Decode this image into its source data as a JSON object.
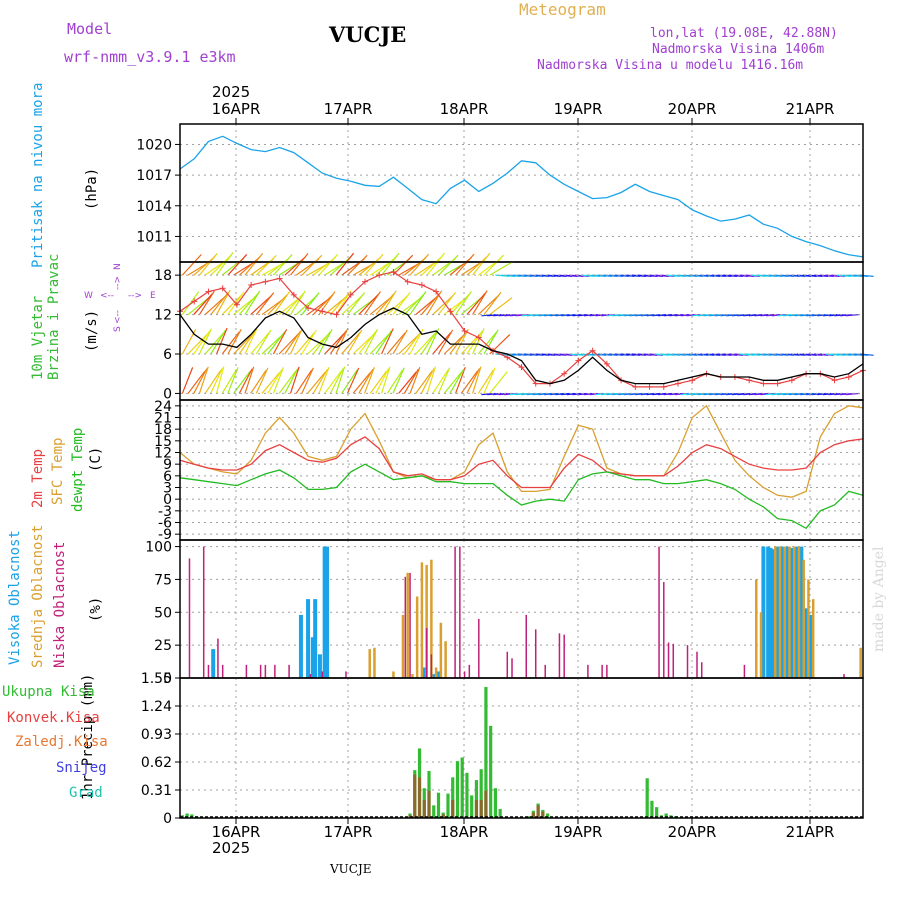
{
  "header": {
    "model_label": "Model",
    "model_name": "wrf-nmm_v3.9.1  e3km",
    "station": "VUCJE",
    "title": "Meteogram",
    "coords": "lon,lat (19.08E, 42.88N)",
    "elevation": "Nadmorska Visina 1406m",
    "model_elevation": "Nadmorska Visina u modelu 1416.16m",
    "year_top": "2025",
    "year_bottom": "2025",
    "station_bottom": "VUCJE",
    "watermark": "made by Angel"
  },
  "colors": {
    "pressure": "#1aa3e8",
    "wind_speed": "#000000",
    "gust": "#e84040",
    "temp2m": "#e84040",
    "sfc_temp": "#d9a030",
    "dewpt": "#22bb22",
    "high_cloud": "#1aa3e8",
    "mid_cloud": "#d9a030",
    "low_cloud": "#c0207a",
    "total_precip": "#33bb33",
    "conv_precip": "#e84040",
    "frozen": "#e87830",
    "snow": "#4040e0",
    "graupel": "#20c0b0",
    "grid": "#a0a0a0",
    "title": "#e0b050",
    "purple": "#a040d0"
  },
  "chart_data": [
    {
      "type": "line",
      "panel": "pressure",
      "title": "Pritisak na nivou mora",
      "ylabel": "(hPa)",
      "ylim": [
        1008.5,
        1022
      ],
      "yticks": [
        1011,
        1014,
        1017,
        1020
      ],
      "x_dates": [
        "16APR",
        "17APR",
        "18APR",
        "19APR",
        "20APR",
        "21APR"
      ],
      "xlim_hours": [
        0,
        144
      ],
      "series": [
        {
          "name": "MSLP",
          "x": [
            0,
            3,
            6,
            9,
            12,
            15,
            18,
            21,
            24,
            27,
            30,
            33,
            36,
            39,
            42,
            45,
            48,
            51,
            54,
            57,
            60,
            63,
            66,
            69,
            72,
            75,
            78,
            81,
            84,
            87,
            90,
            93,
            96,
            99,
            102,
            105,
            108,
            111,
            114,
            117,
            120,
            123,
            126,
            129,
            132,
            135,
            138,
            141,
            144
          ],
          "values": [
            1017.6,
            1018.6,
            1020.3,
            1020.8,
            1020.1,
            1019.5,
            1019.3,
            1019.7,
            1019.2,
            1018.2,
            1017.2,
            1016.7,
            1016.4,
            1016.0,
            1015.9,
            1016.8,
            1015.7,
            1014.6,
            1014.2,
            1015.7,
            1016.5,
            1015.4,
            1016.2,
            1017.2,
            1018.4,
            1018.2,
            1017.0,
            1016.1,
            1015.4,
            1014.7,
            1014.8,
            1015.3,
            1016.1,
            1015.4,
            1015.0,
            1014.6,
            1013.6,
            1013.0,
            1012.5,
            1012.7,
            1013.1,
            1012.2,
            1011.8,
            1011.0,
            1010.5,
            1010.1,
            1009.6,
            1009.2,
            1009.0
          ]
        }
      ]
    },
    {
      "type": "line",
      "panel": "wind",
      "title": "10m Vjetar Brzina i Pravac",
      "ylabel": "(m/s)",
      "ylim": [
        -1,
        20
      ],
      "yticks": [
        0,
        6,
        12,
        18
      ],
      "direction_legend": [
        "N",
        "S",
        "W",
        "E"
      ],
      "direction_arrows": [
        "<--",
        "-->"
      ],
      "series": [
        {
          "name": "wind speed",
          "x": [
            0,
            3,
            6,
            9,
            12,
            15,
            18,
            21,
            24,
            27,
            30,
            33,
            36,
            39,
            42,
            45,
            48,
            51,
            54,
            57,
            60,
            63,
            66,
            69,
            72,
            75,
            78,
            81,
            84,
            87,
            90,
            93,
            96,
            99,
            102,
            105,
            108,
            111,
            114,
            117,
            120,
            123,
            126,
            129,
            132,
            135,
            138,
            141,
            144
          ],
          "values": [
            12.0,
            9.0,
            7.5,
            7.5,
            7.0,
            9.0,
            11.5,
            12.5,
            11.5,
            8.5,
            7.5,
            7.0,
            8.5,
            10.5,
            12.0,
            13.0,
            12.0,
            9.0,
            9.5,
            7.5,
            7.5,
            7.5,
            6.5,
            6.0,
            5.0,
            2.0,
            1.5,
            2.0,
            3.5,
            5.5,
            3.5,
            2.0,
            1.5,
            1.5,
            1.5,
            2.0,
            2.5,
            3.0,
            2.5,
            2.5,
            2.5,
            2.0,
            2.0,
            2.5,
            3.0,
            3.0,
            2.5,
            3.0,
            4.5
          ]
        },
        {
          "name": "wind gust",
          "x": [
            0,
            3,
            6,
            9,
            12,
            15,
            18,
            21,
            24,
            27,
            30,
            33,
            36,
            39,
            42,
            45,
            48,
            51,
            54,
            57,
            60,
            63,
            66,
            69,
            72,
            75,
            78,
            81,
            84,
            87,
            90,
            93,
            96,
            99,
            102,
            105,
            108,
            111,
            114,
            117,
            120,
            123,
            126,
            129,
            132,
            135,
            138,
            141,
            144
          ],
          "values": [
            12.5,
            14.0,
            15.5,
            16.0,
            13.5,
            16.5,
            17.0,
            17.5,
            15.0,
            13.0,
            12.5,
            12.0,
            15.0,
            17.0,
            18.0,
            18.5,
            17.0,
            16.5,
            15.5,
            12.5,
            9.5,
            8.5,
            6.5,
            5.5,
            4.0,
            1.5,
            1.5,
            3.0,
            5.0,
            6.5,
            4.5,
            2.0,
            1.0,
            1.0,
            1.0,
            1.5,
            2.0,
            3.0,
            2.5,
            2.5,
            2.0,
            1.5,
            1.5,
            2.0,
            3.0,
            3.0,
            2.0,
            2.5,
            3.5
          ]
        }
      ]
    },
    {
      "type": "line",
      "panel": "temperature",
      "title": "2m Temp / SFC Temp / dewpt Temp",
      "ylabel": "(C)",
      "ylim": [
        -10.5,
        25.5
      ],
      "yticks": [
        -9,
        -6,
        -3,
        0,
        3,
        6,
        9,
        12,
        15,
        18,
        21,
        24
      ],
      "series": [
        {
          "name": "2m Temp",
          "x": [
            0,
            3,
            6,
            9,
            12,
            15,
            18,
            21,
            24,
            27,
            30,
            33,
            36,
            39,
            42,
            45,
            48,
            51,
            54,
            57,
            60,
            63,
            66,
            69,
            72,
            75,
            78,
            81,
            84,
            87,
            90,
            93,
            96,
            99,
            102,
            105,
            108,
            111,
            114,
            117,
            120,
            123,
            126,
            129,
            132,
            135,
            138,
            141,
            144
          ],
          "values": [
            10.0,
            9.0,
            8.0,
            7.5,
            7.5,
            9.0,
            12.5,
            14.0,
            12.0,
            10.0,
            9.5,
            10.5,
            14.0,
            16.0,
            13.0,
            7.0,
            6.0,
            6.5,
            5.0,
            5.0,
            6.0,
            9.0,
            10.0,
            6.0,
            3.0,
            3.0,
            3.0,
            8.0,
            11.5,
            10.0,
            7.0,
            6.5,
            6.0,
            6.0,
            6.0,
            8.5,
            12.0,
            14.0,
            13.0,
            11.0,
            9.0,
            8.0,
            7.5,
            7.5,
            8.0,
            12.0,
            14.0,
            15.0,
            15.5
          ]
        },
        {
          "name": "SFC Temp",
          "x": [
            0,
            3,
            6,
            9,
            12,
            15,
            18,
            21,
            24,
            27,
            30,
            33,
            36,
            39,
            42,
            45,
            48,
            51,
            54,
            57,
            60,
            63,
            66,
            69,
            72,
            75,
            78,
            81,
            84,
            87,
            90,
            93,
            96,
            99,
            102,
            105,
            108,
            111,
            114,
            117,
            120,
            123,
            126,
            129,
            132,
            135,
            138,
            141,
            144
          ],
          "values": [
            12.0,
            9.0,
            8.0,
            7.0,
            6.5,
            10.0,
            17.0,
            21.0,
            17.0,
            11.0,
            10.0,
            11.0,
            18.0,
            22.0,
            15.0,
            7.0,
            5.5,
            6.0,
            5.0,
            5.0,
            7.0,
            14.0,
            17.0,
            7.0,
            2.0,
            2.0,
            2.5,
            11.0,
            19.0,
            18.0,
            8.0,
            6.5,
            6.0,
            6.0,
            6.0,
            12.0,
            21.0,
            24.0,
            17.0,
            10.0,
            6.0,
            3.0,
            1.0,
            0.5,
            2.0,
            16.0,
            22.0,
            24.0,
            23.5
          ]
        },
        {
          "name": "dewpt Temp",
          "x": [
            0,
            3,
            6,
            9,
            12,
            15,
            18,
            21,
            24,
            27,
            30,
            33,
            36,
            39,
            42,
            45,
            48,
            51,
            54,
            57,
            60,
            63,
            66,
            69,
            72,
            75,
            78,
            81,
            84,
            87,
            90,
            93,
            96,
            99,
            102,
            105,
            108,
            111,
            114,
            117,
            120,
            123,
            126,
            129,
            132,
            135,
            138,
            141,
            144
          ],
          "values": [
            5.5,
            5.0,
            4.5,
            4.0,
            3.5,
            5.0,
            6.5,
            7.5,
            5.5,
            2.5,
            2.5,
            3.0,
            7.0,
            9.0,
            7.0,
            5.0,
            5.5,
            6.0,
            4.5,
            4.5,
            4.0,
            4.0,
            4.0,
            1.0,
            -1.5,
            -0.5,
            0.0,
            -0.5,
            5.0,
            6.5,
            7.0,
            6.0,
            5.0,
            5.0,
            4.0,
            4.0,
            4.5,
            5.0,
            4.0,
            2.5,
            0.0,
            -2.0,
            -5.0,
            -5.5,
            -7.5,
            -3.0,
            -1.5,
            2.0,
            1.0
          ]
        }
      ]
    },
    {
      "type": "bar",
      "panel": "clouds",
      "title": "Visoka Oblacnost / Srednja Oblacnost / Niska Oblacnost",
      "ylabel": "(%)",
      "ylim": [
        0,
        105
      ],
      "yticks": [
        0,
        25,
        50,
        75,
        100
      ],
      "series": [
        {
          "name": "Visoka Oblacnost",
          "x": [
            7,
            25.5,
            27,
            28,
            28.5,
            29.5,
            30.5,
            31,
            51.5,
            53.5,
            54.5,
            123,
            124,
            124.5,
            125,
            126,
            127,
            128,
            129,
            130,
            131,
            132,
            133
          ],
          "values": [
            22,
            48,
            60,
            31,
            60,
            18,
            100,
            100,
            8,
            3,
            5,
            100,
            100,
            99,
            98,
            100,
            100,
            100,
            99,
            100,
            100,
            53,
            48
          ]
        },
        {
          "name": "Srednja Oblacnost",
          "x": [
            40,
            41,
            45,
            47,
            48,
            49,
            50,
            51,
            52,
            53,
            54,
            55,
            56,
            121.5,
            122.5,
            125.5,
            126.5,
            127.5,
            128.5,
            129.5,
            130.5,
            131.5,
            132.5,
            133.5,
            143.5
          ],
          "values": [
            22,
            23,
            5,
            48,
            80,
            3,
            62,
            88,
            86,
            90,
            8,
            42,
            28,
            75,
            50,
            100,
            100,
            100,
            100,
            100,
            100,
            90,
            75,
            60,
            23
          ]
        },
        {
          "name": "Niska Oblacnost",
          "x": [
            2,
            5,
            6,
            8,
            9,
            14,
            17,
            18,
            20,
            23,
            27.5,
            30,
            35,
            47.5,
            48.5,
            52,
            53,
            58,
            59,
            60,
            61,
            63,
            69,
            70,
            73,
            75,
            77,
            80,
            81,
            86,
            89,
            90,
            101,
            102,
            103,
            104,
            107,
            109,
            110,
            119,
            140
          ],
          "values": [
            91,
            100,
            10,
            30,
            10,
            10,
            10,
            10,
            10,
            10,
            3,
            5,
            5,
            77,
            80,
            38,
            18,
            100,
            100,
            5,
            10,
            45,
            20,
            15,
            48,
            37,
            10,
            34,
            33,
            10,
            10,
            10,
            100,
            73,
            27,
            26,
            25,
            20,
            12,
            10,
            3
          ]
        }
      ]
    },
    {
      "type": "bar",
      "panel": "precipitation",
      "title": "Ukupna Kisa / Konvek.Kisa / Zaledj.Kisa / Snijeg / Grad",
      "ylabel": "1hr Precip (mm)",
      "ylim": [
        0,
        1.55
      ],
      "yticks": [
        0,
        0.31,
        0.62,
        0.93,
        1.24,
        1.55
      ],
      "ytick_labels": [
        "0",
        "0.31",
        "0.62",
        "0.93",
        "1.24",
        "1.55"
      ],
      "series": [
        {
          "name": "Ukupna Kisa",
          "x": [
            0.5,
            1.5,
            2.5,
            3.5,
            48.5,
            49.5,
            50.5,
            51.5,
            52.5,
            53.5,
            54.5,
            55.5,
            56.5,
            57.5,
            58.5,
            59.5,
            60.5,
            61.5,
            62.5,
            63.5,
            64.5,
            65.5,
            66.5,
            67.5,
            73.5,
            74.5,
            75.5,
            76.5,
            77.5,
            98.5,
            99.5,
            100.5,
            101.5,
            102.5,
            103.5,
            104.5
          ],
          "values": [
            0.03,
            0.05,
            0.04,
            0.02,
            0.05,
            0.53,
            0.77,
            0.33,
            0.52,
            0.14,
            0.28,
            0.06,
            0.27,
            0.45,
            0.63,
            0.67,
            0.5,
            0.25,
            0.42,
            0.54,
            1.45,
            1.02,
            0.33,
            0.1,
            0.02,
            0.08,
            0.16,
            0.09,
            0.05,
            0.44,
            0.19,
            0.12,
            0.03,
            0.05,
            0.03,
            0.02
          ]
        },
        {
          "name": "Konvek.Kisa",
          "x": [
            48.5,
            49.5,
            50.5,
            51.5,
            52.5,
            55.5,
            57.5,
            62.5,
            63.5,
            64.5,
            74.5,
            75.5,
            76.5
          ],
          "values": [
            0.03,
            0.48,
            0.45,
            0.2,
            0.3,
            0.04,
            0.2,
            0.2,
            0.2,
            0.3,
            0.06,
            0.14,
            0.07
          ]
        },
        {
          "name": "Zaledj.Kisa",
          "x": [],
          "values": []
        },
        {
          "name": "Snijeg",
          "x": [],
          "values": []
        },
        {
          "name": "Grad",
          "x": [],
          "values": []
        }
      ]
    }
  ]
}
